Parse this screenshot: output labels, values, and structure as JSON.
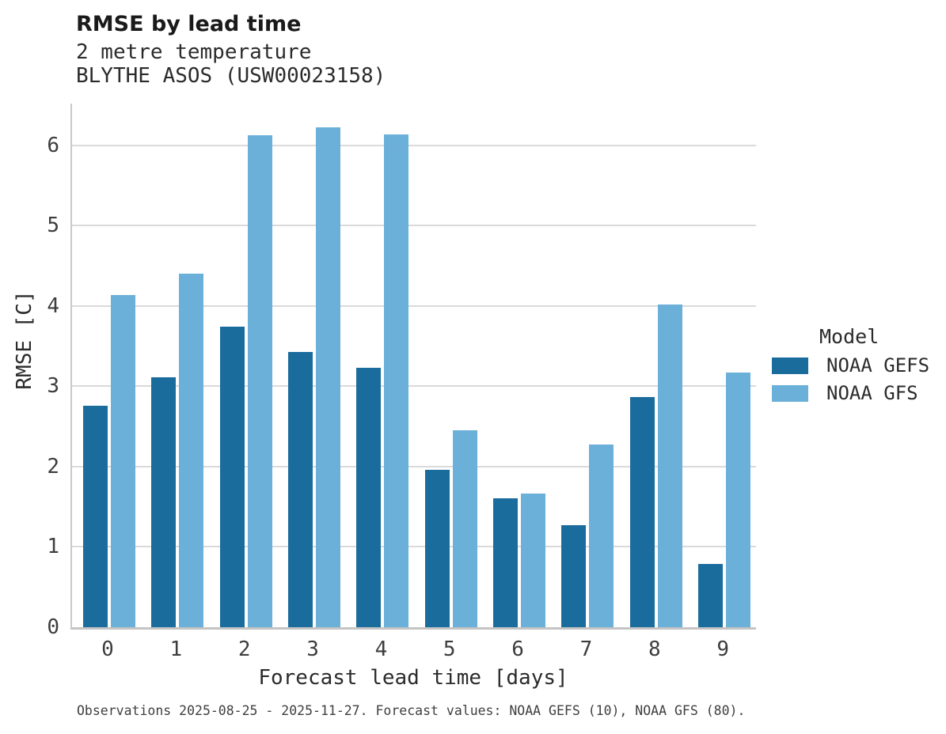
{
  "chart_data": {
    "type": "bar",
    "title": "RMSE by lead time",
    "subtitle": [
      "2 metre temperature",
      "BLYTHE ASOS (USW00023158)"
    ],
    "categories": [
      "0",
      "1",
      "2",
      "3",
      "4",
      "5",
      "6",
      "7",
      "8",
      "9"
    ],
    "series": [
      {
        "name": "NOAA GEFS",
        "color": "#1a6c9d",
        "values": [
          2.76,
          3.11,
          3.74,
          3.43,
          3.23,
          1.96,
          1.61,
          1.27,
          2.87,
          0.79
        ]
      },
      {
        "name": "NOAA GFS",
        "color": "#6bb0d8",
        "values": [
          4.14,
          4.4,
          6.13,
          6.22,
          6.14,
          2.45,
          1.66,
          2.28,
          4.02,
          3.17
        ]
      }
    ],
    "xlabel": "Forecast lead time [days]",
    "ylabel": "RMSE [C]",
    "ylim": [
      0,
      6.52
    ],
    "yticks": [
      0,
      1,
      2,
      3,
      4,
      5,
      6
    ],
    "grid": "horizontal",
    "legend": {
      "title": "Model",
      "position": "right"
    },
    "caption": "Observations 2025-08-25 - 2025-11-27. Forecast values: NOAA GEFS (10), NOAA GFS (80)."
  },
  "palette": {
    "gefs": "#1a6c9d",
    "gfs": "#6bb0d8",
    "gridline": "#dadada",
    "axis": "#c4c4c4",
    "title_text": "#1a1a1a",
    "body_text": "#2b2b2b",
    "tick_text": "#3d3d3d",
    "caption_text": "#3f3f3f",
    "background": "#ffffff"
  }
}
